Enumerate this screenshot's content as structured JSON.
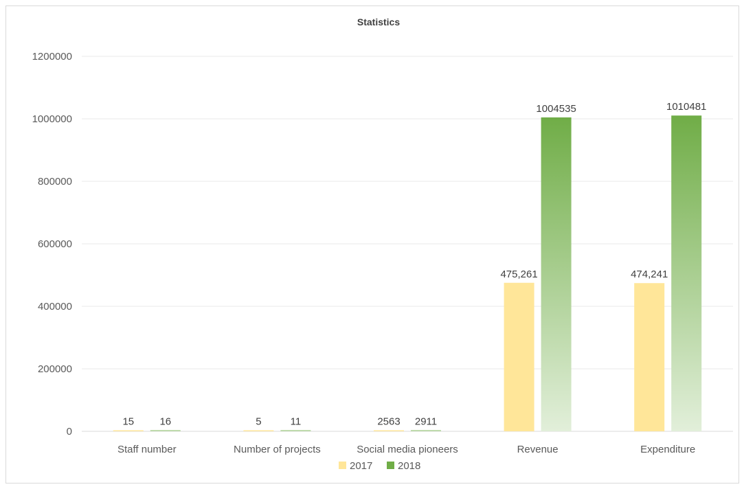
{
  "chart_data": {
    "type": "bar",
    "title": "Statistics",
    "categories": [
      "Staff number",
      "Number of projects",
      "Social media pioneers",
      "Revenue",
      "Expenditure"
    ],
    "series": [
      {
        "name": "2017",
        "values": [
          15,
          5,
          2563,
          475261,
          474241
        ],
        "labels": [
          "15",
          "5",
          "2563",
          "475,261",
          "474,241"
        ],
        "color": "#FFE699"
      },
      {
        "name": "2018",
        "values": [
          16,
          11,
          2911,
          1004535,
          1010481
        ],
        "labels": [
          "16",
          "11",
          "2911",
          "1004535",
          "1010481"
        ],
        "color": "#70AD47",
        "gradient_end": "#E2EFDA"
      }
    ],
    "yticks": [
      "0",
      "200000",
      "400000",
      "600000",
      "800000",
      "1000000",
      "1200000"
    ],
    "ylim": [
      0,
      1200000
    ],
    "grid": true,
    "legend": "bottom"
  }
}
